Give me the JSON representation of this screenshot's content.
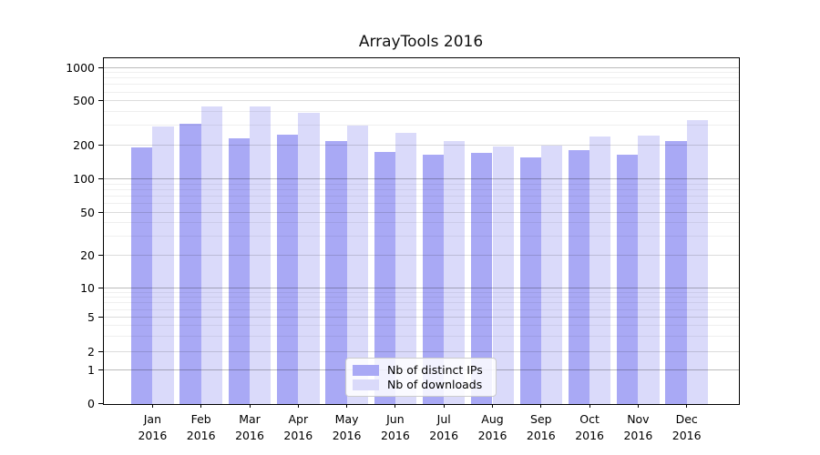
{
  "chart_data": {
    "type": "bar",
    "title": "ArrayTools 2016",
    "categories": [
      "Jan",
      "Feb",
      "Mar",
      "Apr",
      "May",
      "Jun",
      "Jul",
      "Aug",
      "Sep",
      "Oct",
      "Nov",
      "Dec"
    ],
    "x_year_label": "2016",
    "series": [
      {
        "name": "Nb of distinct IPs",
        "color": "#a9a9f5",
        "values": [
          190,
          315,
          230,
          250,
          220,
          175,
          165,
          170,
          155,
          180,
          165,
          220
        ]
      },
      {
        "name": "Nb of downloads",
        "color": "#dadafa",
        "values": [
          295,
          445,
          445,
          395,
          300,
          260,
          220,
          195,
          200,
          240,
          245,
          335
        ]
      }
    ],
    "yticks": [
      0,
      1,
      2,
      5,
      10,
      20,
      50,
      100,
      200,
      500,
      1000
    ],
    "y_scale": "symlog",
    "ylim": [
      0,
      1200
    ],
    "xlabel": "",
    "ylabel": "",
    "grid": true,
    "legend_position": "lower center",
    "colors": {
      "background": "#ffffff",
      "spine": "#000000",
      "grid_major_decade": "#bbbbbb",
      "grid_major": "#dcdcdc",
      "grid_minor": "#efefef"
    }
  }
}
